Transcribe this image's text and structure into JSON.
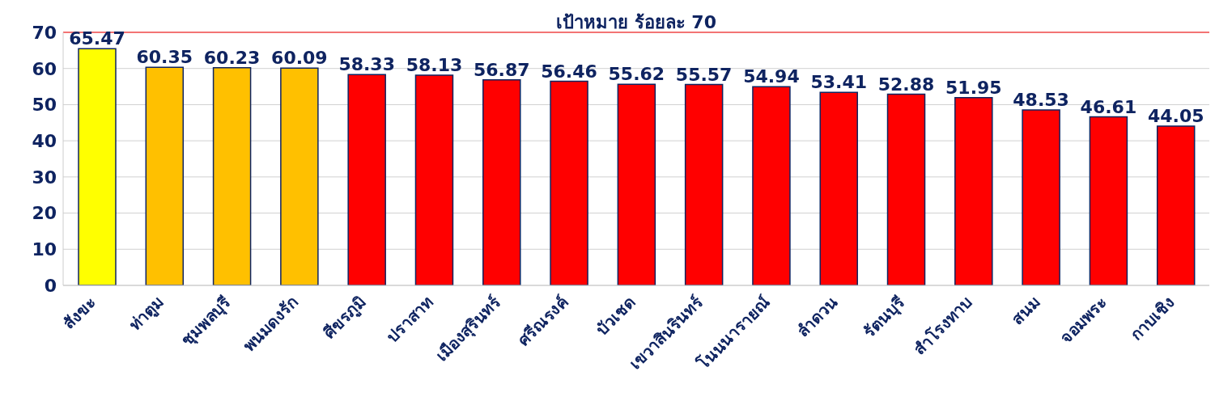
{
  "chart_data": {
    "type": "bar",
    "categories": [
      "สังขะ",
      "ท่าตูม",
      "ชุมพลบุรี",
      "พนมดงรัก",
      "ศีขรภูมิ",
      "ปราสาท",
      "เมืองสุรินทร์",
      "ศรีณรงค์",
      "บัวเชด",
      "เขวาสินรินทร์",
      "โนนนารายณ์",
      "ลำดวน",
      "รัตนบุรี",
      "สำโรงทาบ",
      "สนม",
      "จอมพระ",
      "กาบเชิง"
    ],
    "values": [
      65.47,
      60.35,
      60.23,
      60.09,
      58.33,
      58.13,
      56.87,
      56.46,
      55.62,
      55.57,
      54.94,
      53.41,
      52.88,
      51.95,
      48.53,
      46.61,
      44.05
    ],
    "colors": [
      "#ffff00",
      "#ffc000",
      "#ffc000",
      "#ffc000",
      "#ff0000",
      "#ff0000",
      "#ff0000",
      "#ff0000",
      "#ff0000",
      "#ff0000",
      "#ff0000",
      "#ff0000",
      "#ff0000",
      "#ff0000",
      "#ff0000",
      "#ff0000",
      "#ff0000"
    ],
    "ylim": [
      0,
      70
    ],
    "yticks": [
      0,
      10,
      20,
      30,
      40,
      50,
      60,
      70
    ],
    "grid": "y",
    "data_labels": true,
    "ref_lines": [
      {
        "axis": "y",
        "value": 70,
        "label": "เป้าหมาย ร้อยละ 70",
        "color": "#ff0000"
      }
    ]
  }
}
